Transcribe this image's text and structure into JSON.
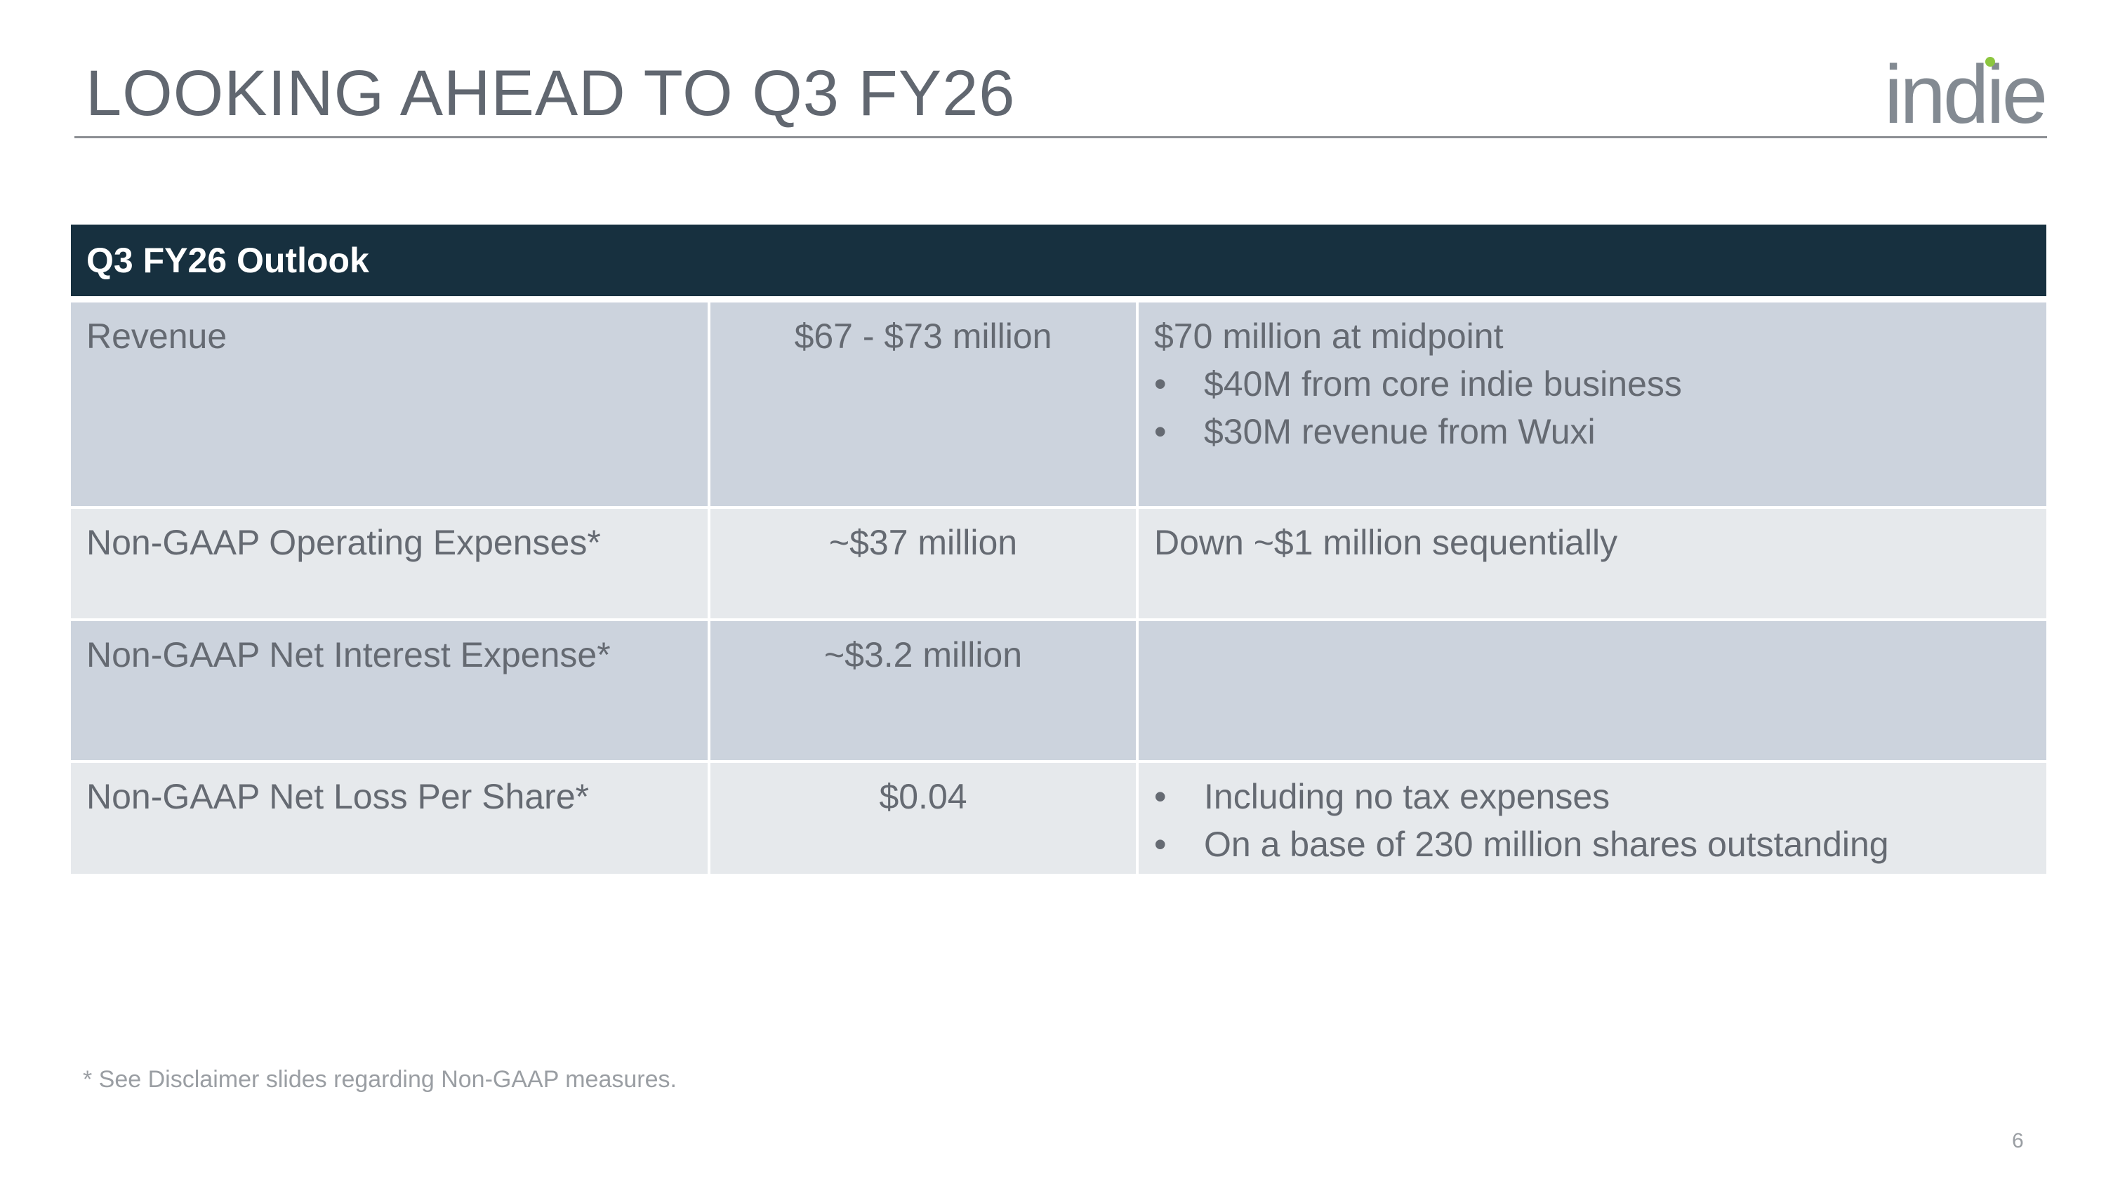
{
  "slide": {
    "title": "LOOKING AHEAD TO Q3 FY26",
    "logo_text": "indie",
    "footnote": "* See Disclaimer slides regarding Non-GAAP measures.",
    "page_number": "6"
  },
  "colors": {
    "header_bg": "#17303f",
    "row_dark": "#ccd3dd",
    "row_light": "#e6e9ec",
    "logo_text": "#838a92",
    "logo_dot": "#8cc63f"
  },
  "table": {
    "header": "Q3 FY26 Outlook",
    "rows": [
      {
        "metric": "Revenue",
        "value": "$67 - $73 million",
        "note": "$70 million at midpoint",
        "bullets": [
          "$40M from core indie business",
          "$30M revenue from Wuxi"
        ]
      },
      {
        "metric": "Non-GAAP Operating Expenses*",
        "value": "~$37 million",
        "note": "Down ~$1 million sequentially"
      },
      {
        "metric": "Non-GAAP Net Interest Expense*",
        "value": "~$3.2 million",
        "note": ""
      },
      {
        "metric": "Non-GAAP Net Loss Per Share*",
        "value": "$0.04",
        "bullets": [
          "Including no tax expenses",
          "On a base of 230 million shares outstanding"
        ]
      }
    ]
  }
}
